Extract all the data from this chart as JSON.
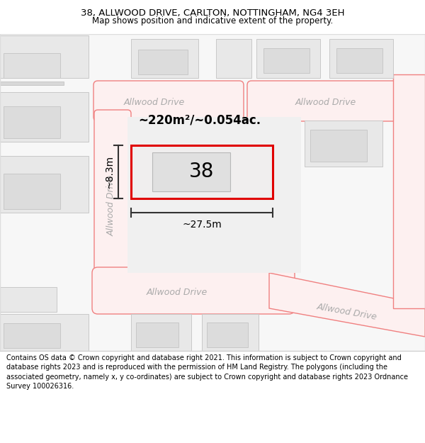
{
  "title_line1": "38, ALLWOOD DRIVE, CARLTON, NOTTINGHAM, NG4 3EH",
  "title_line2": "Map shows position and indicative extent of the property.",
  "footer_text": "Contains OS data © Crown copyright and database right 2021. This information is subject to Crown copyright and database rights 2023 and is reproduced with the permission of HM Land Registry. The polygons (including the associated geometry, namely x, y co-ordinates) are subject to Crown copyright and database rights 2023 Ordnance Survey 100026316.",
  "bg_color": "#ffffff",
  "road_outline_color": "#f08080",
  "number_label": "38",
  "area_label": "~220m²/~0.054ac.",
  "width_label": "~27.5m",
  "height_label": "~8.3m"
}
